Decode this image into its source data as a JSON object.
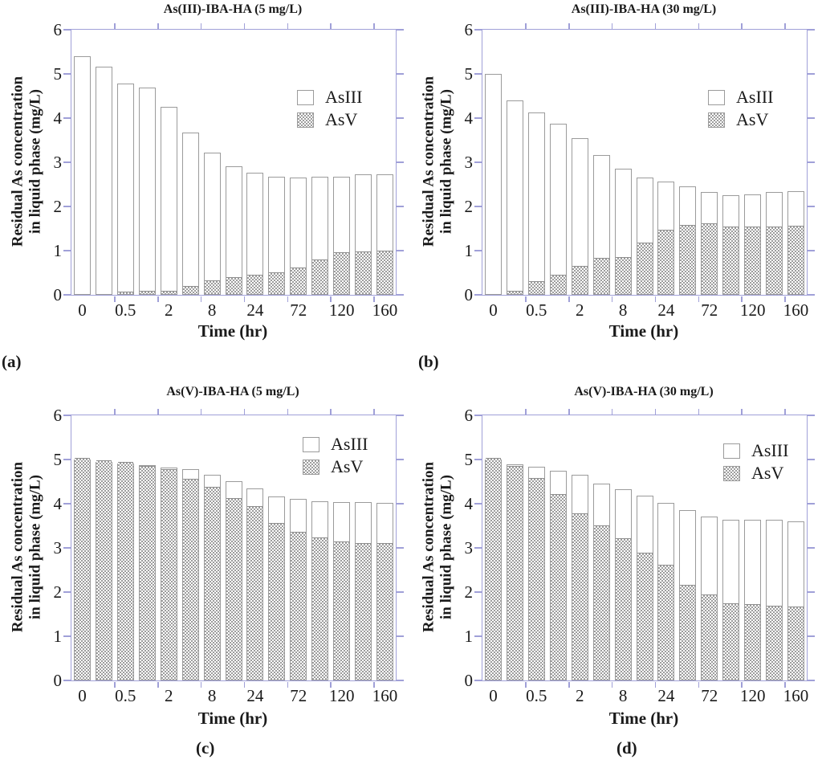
{
  "figure": {
    "colors": {
      "axis": "#a0a0d8",
      "bar_outline": "#9b9b9b",
      "hatch_gray": "#9d9d9d",
      "text": "#1a1a1a"
    },
    "panel_tags": {
      "a": "(a)",
      "b": "(b)",
      "c": "(c)",
      "d": "(d)"
    }
  },
  "chart_data": [
    {
      "type": "bar",
      "stacked": true,
      "title": "As(III)-IBA-HA (5 mg/L)",
      "panel_label": "(a)",
      "xlabel": "Time (hr)",
      "ylabel_line1": "Residual As concentration",
      "ylabel_line2": "in liquid phase (mg/L)",
      "ylim": [
        0,
        6
      ],
      "y_ticks": [
        0,
        1,
        2,
        3,
        4,
        5,
        6
      ],
      "grid": false,
      "legend_position": "inside-upper-right",
      "categories": [
        "0",
        "",
        "0.5",
        "",
        "2",
        "",
        "8",
        "",
        "24",
        "",
        "72",
        "",
        "120",
        "",
        "160"
      ],
      "series": [
        {
          "name": "AsIII",
          "style": "white",
          "values": [
            5.4,
            5.16,
            4.74,
            4.64,
            4.19,
            3.5,
            2.93,
            2.55,
            2.34,
            2.21,
            2.07,
            1.91,
            1.75,
            1.78,
            1.76
          ]
        },
        {
          "name": "AsV",
          "style": "gray-hatch",
          "values": [
            0.0,
            0.0,
            0.04,
            0.05,
            0.06,
            0.17,
            0.29,
            0.36,
            0.42,
            0.47,
            0.58,
            0.77,
            0.92,
            0.94,
            0.96
          ]
        }
      ],
      "totals": [
        5.4,
        5.16,
        4.78,
        4.69,
        4.25,
        3.67,
        3.22,
        2.91,
        2.76,
        2.68,
        2.65,
        2.68,
        2.67,
        2.72,
        2.72
      ]
    },
    {
      "type": "bar",
      "stacked": true,
      "title": "As(III)-IBA-HA (30 mg/L)",
      "panel_label": "(b)",
      "xlabel": "Time (hr)",
      "ylabel_line1": "Residual As concentration",
      "ylabel_line2": "in liquid phase (mg/L)",
      "ylim": [
        0,
        6
      ],
      "y_ticks": [
        0,
        1,
        2,
        3,
        4,
        5,
        6
      ],
      "grid": false,
      "legend_position": "inside-upper-right",
      "categories": [
        "0",
        "",
        "0.5",
        "",
        "2",
        "",
        "8",
        "",
        "24",
        "",
        "72",
        "",
        "120",
        "",
        "160"
      ],
      "series": [
        {
          "name": "AsIII",
          "style": "white",
          "values": [
            5.0,
            4.35,
            3.86,
            3.46,
            2.92,
            2.37,
            2.04,
            1.51,
            1.13,
            0.9,
            0.73,
            0.74,
            0.77,
            0.82,
            0.82
          ]
        },
        {
          "name": "AsV",
          "style": "gray-hatch",
          "values": [
            0.0,
            0.05,
            0.27,
            0.42,
            0.62,
            0.8,
            0.82,
            1.15,
            1.44,
            1.55,
            1.59,
            1.51,
            1.51,
            1.51,
            1.52
          ]
        }
      ],
      "totals": [
        5.0,
        4.4,
        4.13,
        3.88,
        3.54,
        3.17,
        2.86,
        2.66,
        2.57,
        2.45,
        2.32,
        2.25,
        2.28,
        2.33,
        2.34
      ]
    },
    {
      "type": "bar",
      "stacked": true,
      "title": "As(V)-IBA-HA (5 mg/L)",
      "panel_label": "(c)",
      "xlabel": "Time (hr)",
      "ylabel_line1": "Residual As concentration",
      "ylabel_line2": "in liquid phase (mg/L)",
      "ylim": [
        0,
        6
      ],
      "y_ticks": [
        0,
        1,
        2,
        3,
        4,
        5,
        6
      ],
      "grid": false,
      "legend_position": "inside-upper-right",
      "categories": [
        "0",
        "",
        "0.5",
        "",
        "2",
        "",
        "8",
        "",
        "24",
        "",
        "72",
        "",
        "120",
        "",
        "160"
      ],
      "series": [
        {
          "name": "AsIII",
          "style": "white",
          "values": [
            0.0,
            0.0,
            0.0,
            0.05,
            0.07,
            0.25,
            0.3,
            0.41,
            0.45,
            0.65,
            0.78,
            0.85,
            0.94,
            0.95,
            0.95
          ]
        },
        {
          "name": "AsV",
          "style": "gray-hatch",
          "values": [
            5.0,
            4.95,
            4.91,
            4.82,
            4.75,
            4.53,
            4.35,
            4.09,
            3.9,
            3.52,
            3.33,
            3.2,
            3.1,
            3.08,
            3.07
          ]
        }
      ],
      "totals": [
        5.0,
        4.95,
        4.91,
        4.87,
        4.82,
        4.78,
        4.65,
        4.5,
        4.35,
        4.17,
        4.11,
        4.05,
        4.04,
        4.03,
        4.02
      ]
    },
    {
      "type": "bar",
      "stacked": true,
      "title": "As(V)-IBA-HA (30 mg/L)",
      "panel_label": "(d)",
      "xlabel": "Time (hr)",
      "ylabel_line1": "Residual As concentration",
      "ylabel_line2": "in liquid phase (mg/L)",
      "ylim": [
        0,
        6
      ],
      "y_ticks": [
        0,
        1,
        2,
        3,
        4,
        5,
        6
      ],
      "grid": false,
      "legend_position": "inside-upper-right",
      "categories": [
        "0",
        "",
        "0.5",
        "",
        "2",
        "",
        "8",
        "",
        "24",
        "",
        "72",
        "",
        "120",
        "",
        "160"
      ],
      "series": [
        {
          "name": "AsIII",
          "style": "white",
          "values": [
            0.0,
            0.09,
            0.28,
            0.56,
            0.9,
            0.98,
            1.15,
            1.34,
            1.44,
            1.73,
            1.79,
            1.94,
            1.94,
            1.98,
            1.97
          ]
        },
        {
          "name": "AsV",
          "style": "gray-hatch",
          "values": [
            5.0,
            4.81,
            4.55,
            4.18,
            3.75,
            3.48,
            3.18,
            2.85,
            2.58,
            2.12,
            1.91,
            1.7,
            1.69,
            1.65,
            1.63
          ]
        }
      ],
      "totals": [
        5.0,
        4.9,
        4.83,
        4.74,
        4.65,
        4.46,
        4.33,
        4.19,
        4.02,
        3.85,
        3.7,
        3.64,
        3.63,
        3.63,
        3.6
      ]
    }
  ]
}
